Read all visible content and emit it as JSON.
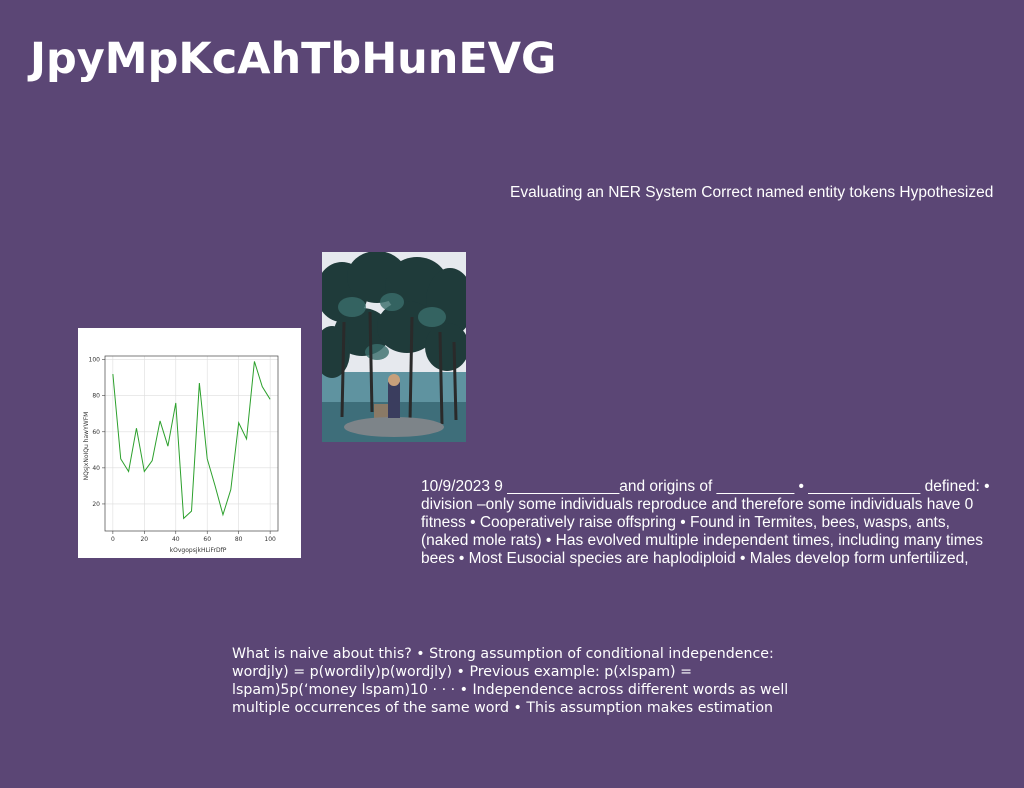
{
  "title": "JpyMpKcAhTbHunEVG",
  "ner_text": "Evaluating an NER System Correct named entity tokens Hypothesized",
  "eusocial_lines": [
    "10/9/2023 9 _____________and origins of _________ • _____________ defined: •",
    "division –only some individuals reproduce and therefore some individuals have 0",
    "fitness • Cooperatively raise offspring • Found in Termites, bees, wasps, ants,",
    "(naked mole rats) • Has evolved multiple independent times, including many times",
    "bees • Most Eusocial species are haplodiploid • Males develop form unfertilized,"
  ],
  "naive_lines": [
    "What is naive about this? • Strong assumption of conditional independence:",
    "wordjly) = p(wordily)p(wordjly) • Previous example: p(xlspam) =",
    "\u001flspam)5p(‘money \u001flspam)10 · · · • Independence across different words as well",
    "multiple occurrences of the same word • This assumption makes estimation"
  ],
  "chart_data": {
    "type": "line",
    "xlabel": "kOvgopsjkHLiFrDfP",
    "ylabel": "NQsJxNoIQu hawYWFM",
    "xlim": [
      -5,
      105
    ],
    "ylim": [
      5,
      102
    ],
    "x_ticks": [
      0,
      20,
      40,
      60,
      80,
      100
    ],
    "y_ticks": [
      20,
      40,
      60,
      80,
      100
    ],
    "grid": true,
    "line_color": "#2ca02c",
    "series": [
      {
        "x": [
          0,
          5,
          10,
          15,
          20,
          25,
          30,
          35,
          40,
          45,
          50,
          55,
          60,
          65,
          70,
          75,
          80,
          85,
          90,
          95,
          100
        ],
        "values": [
          92,
          45,
          38,
          62,
          38,
          44,
          66,
          52,
          76,
          12,
          16,
          87,
          45,
          30,
          14,
          28,
          65,
          56,
          99,
          85,
          78
        ]
      }
    ]
  }
}
